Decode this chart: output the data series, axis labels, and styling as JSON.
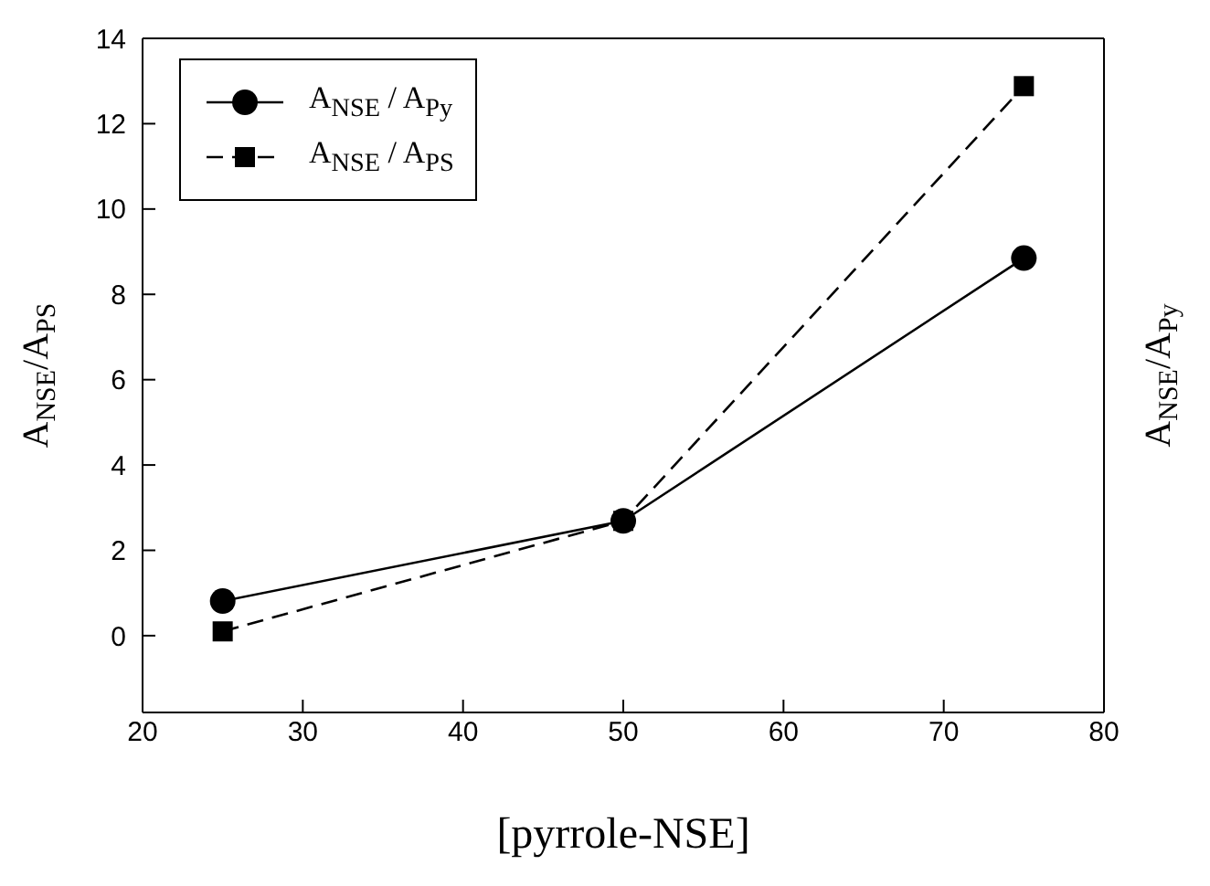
{
  "chart_data": {
    "type": "line",
    "xlabel": "[pyrrole-NSE]",
    "ylabel": "A$_{NSE}$/A$_{PS}$",
    "y2label": "A$_{NSE}$/A$_{Py}$",
    "x": [
      25,
      50,
      75
    ],
    "series": [
      {
        "name": "A$_{NSE}$ / A$_{Py}$",
        "color": "#000000",
        "values": [
          0.81,
          2.69,
          8.85
        ],
        "marker": "circle",
        "line_style": "solid"
      },
      {
        "name": "A$_{NSE}$ / A$_{PS}$",
        "color": "#000000",
        "values": [
          0.1,
          2.69,
          12.88
        ],
        "marker": "square",
        "line_style": "dashed"
      }
    ],
    "xlim": [
      20,
      80
    ],
    "xticks": [
      20,
      30,
      40,
      50,
      60,
      70,
      80
    ],
    "ylim": [
      -1.8,
      14
    ],
    "yticks": [
      0,
      2,
      4,
      6,
      8,
      10,
      12,
      14
    ],
    "legend": "top left"
  }
}
